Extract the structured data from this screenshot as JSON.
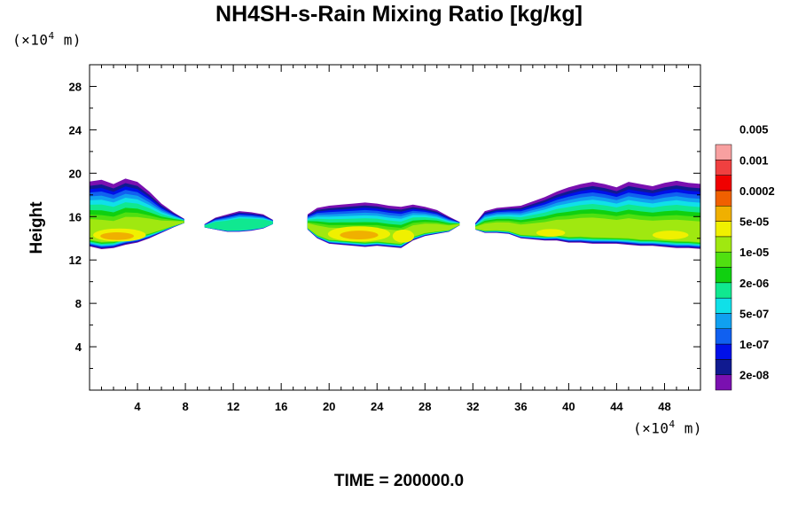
{
  "chart_data": {
    "type": "heatmap",
    "title": "NH4SH-s-Rain Mixing Ratio [kg/kg]",
    "xlabel": "",
    "ylabel": "Height",
    "x_unit_prefix": "(×10",
    "x_unit_exp": "4",
    "x_unit_suffix": " m)",
    "y_unit_prefix": "(×10",
    "y_unit_exp": "4",
    "y_unit_suffix": " m)",
    "xlim": [
      0,
      51
    ],
    "ylim": [
      0,
      30
    ],
    "x_ticks": [
      4,
      8,
      12,
      16,
      20,
      24,
      28,
      32,
      36,
      40,
      44,
      48
    ],
    "y_ticks": [
      4,
      8,
      12,
      16,
      20,
      24,
      28
    ],
    "colorbar": {
      "colors": [
        "#7a10b0",
        "#101a90",
        "#0010e8",
        "#1060f0",
        "#10a0f0",
        "#10e0e8",
        "#10e890",
        "#10d010",
        "#50e010",
        "#a0e810",
        "#f0f000",
        "#f0b000",
        "#f06000",
        "#f00000",
        "#f04040",
        "#f8a0a0"
      ],
      "labels": [
        "2e-08",
        "1e-07",
        "5e-07",
        "2e-06",
        "1e-05",
        "5e-05",
        "0.0002",
        "0.001",
        "0.005"
      ]
    },
    "cloud_regions": [
      {
        "x": [
          0,
          8.0
        ],
        "y_base": 13.0,
        "y_top": 19.5,
        "max_level": "1e-05 to 5e-05",
        "peak": "0.0002"
      },
      {
        "x": [
          9.5,
          15.5
        ],
        "y_base": 14.5,
        "y_top": 16.5,
        "max_level": "2e-06 to 1e-05"
      },
      {
        "x": [
          18.0,
          31.0
        ],
        "y_base": 13.0,
        "y_top": 17.3,
        "max_level": "1e-05 to 5e-05",
        "peak": "0.0002"
      },
      {
        "x": [
          32.0,
          51.0
        ],
        "y_base": 13.0,
        "y_top": 19.5,
        "max_level": "1e-05 to 5e-05",
        "peak": "5e-05"
      }
    ]
  },
  "time_label": "TIME = 200000.0"
}
